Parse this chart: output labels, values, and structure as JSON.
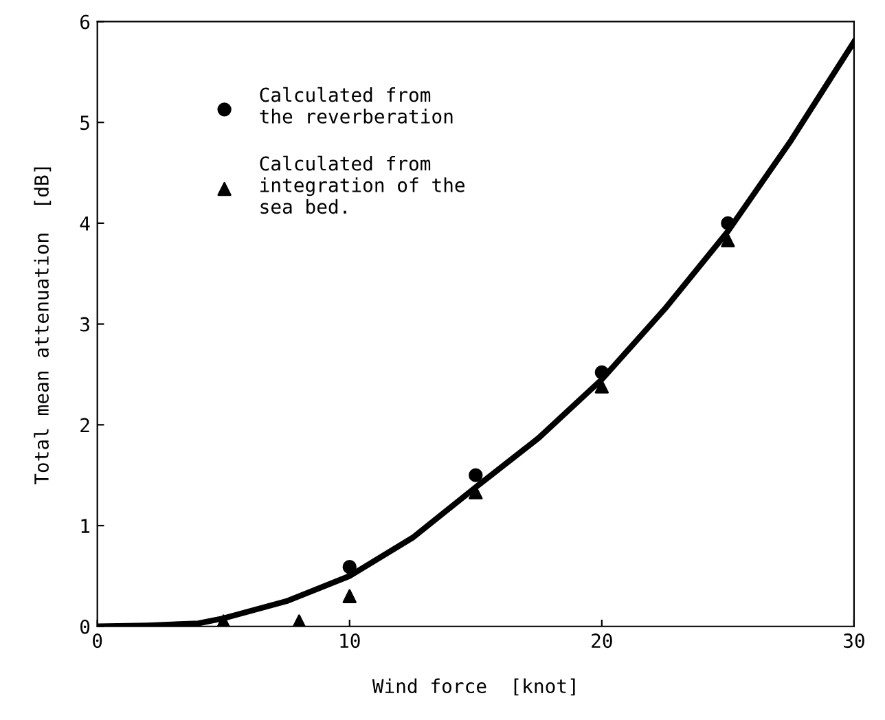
{
  "chart_data": {
    "type": "scatter",
    "xlabel": "Wind force  [knot]",
    "ylabel": "Total mean attenuation  [dB]",
    "xlim": [
      0,
      30
    ],
    "ylim": [
      0,
      6
    ],
    "xticks": [
      0,
      10,
      20,
      30
    ],
    "yticks": [
      0,
      1,
      2,
      3,
      4,
      5,
      6
    ],
    "grid": false,
    "legend": "top left",
    "series": [
      {
        "name": "Calculated from\nthe reverberation",
        "color": "#000000",
        "marker": "circle",
        "x": [
          10,
          15,
          20,
          25
        ],
        "values": [
          0.59,
          1.5,
          2.52,
          4.0
        ]
      },
      {
        "name": "Calculated from\nintegration of the\nsea bed.",
        "color": "#000000",
        "marker": "triangle",
        "x": [
          5,
          8,
          10,
          15,
          20,
          25
        ],
        "values": [
          0.05,
          0.05,
          0.3,
          1.33,
          2.38,
          3.83
        ]
      },
      {
        "type": "line",
        "color": "#000000",
        "marker": "none",
        "line_style": "solid",
        "x": [
          0,
          2,
          4,
          5,
          7.5,
          10,
          12.5,
          15,
          17.5,
          20,
          22.5,
          25,
          27.5,
          30
        ],
        "values": [
          0,
          0.01,
          0.03,
          0.08,
          0.25,
          0.5,
          0.88,
          1.38,
          1.87,
          2.45,
          3.15,
          3.92,
          4.82,
          5.8
        ]
      }
    ]
  }
}
